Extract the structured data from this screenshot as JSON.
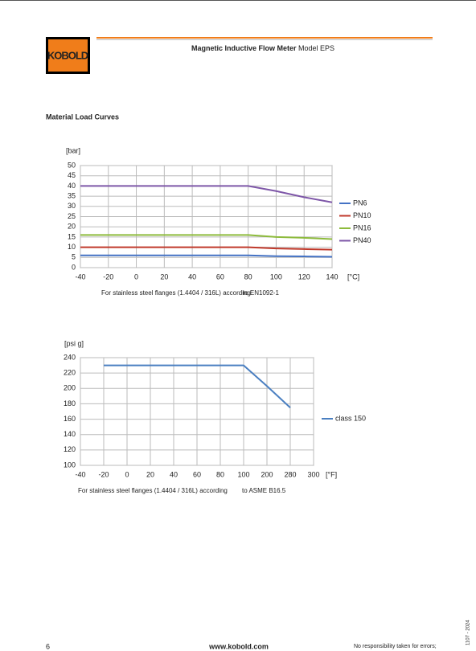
{
  "header": {
    "logo": "KOBOLD",
    "title_bold": "Magnetic Inductive Flow Meter",
    "title_rest": "Model EPS"
  },
  "section_title": "Material Load Curves",
  "chart_data": [
    {
      "type": "line",
      "y_label": "[bar]",
      "x_label": "[°C]",
      "caption": [
        "For stainless steel flanges (1.4404 / 316L) according",
        "to EN1092-1"
      ],
      "x": [
        -40,
        -20,
        0,
        20,
        40,
        60,
        80,
        100,
        120,
        140
      ],
      "xlim": [
        -40,
        140
      ],
      "xticks": [
        -40,
        -20,
        0,
        20,
        40,
        60,
        80,
        100,
        120,
        140
      ],
      "ylim": [
        0,
        50
      ],
      "yticks": [
        0,
        5,
        10,
        15,
        20,
        25,
        30,
        35,
        40,
        45,
        50
      ],
      "grid": true,
      "legend": "right",
      "series": [
        {
          "name": "PN6",
          "color": "#4472c4",
          "values": [
            6,
            6,
            6,
            6,
            6,
            6,
            6,
            5.6,
            5.5,
            5.3
          ]
        },
        {
          "name": "PN10",
          "color": "#c0392b",
          "values": [
            10,
            10,
            10,
            10,
            10,
            10,
            10,
            9.4,
            9.1,
            8.8
          ]
        },
        {
          "name": "PN16",
          "color": "#8dbb3c",
          "values": [
            16,
            16,
            16,
            16,
            16,
            16,
            16,
            15,
            14.6,
            14
          ]
        },
        {
          "name": "PN40",
          "color": "#7e57a8",
          "values": [
            40,
            40,
            40,
            40,
            40,
            40,
            40,
            37.5,
            34.5,
            32
          ]
        }
      ]
    },
    {
      "type": "line",
      "y_label": "[psi g]",
      "x_label": "[°F]",
      "caption": [
        "For stainless steel flanges (1.4404 / 316L) according",
        "to ASME B16.5"
      ],
      "categories": [
        "-40",
        "-20",
        "0",
        "20",
        "40",
        "60",
        "80",
        "100",
        "200",
        "280",
        "300"
      ],
      "ylim": [
        100,
        240
      ],
      "yticks": [
        100,
        120,
        140,
        160,
        180,
        200,
        220,
        240
      ],
      "grid": true,
      "legend": "right",
      "series": [
        {
          "name": "class 150",
          "color": "#4a7fc1",
          "values": [
            null,
            230,
            230,
            230,
            230,
            230,
            230,
            230,
            203,
            175,
            null
          ]
        }
      ]
    }
  ],
  "footer": {
    "page": "6",
    "website": "www.kobold.com",
    "disclaimer": "No responsibility taken for errors;",
    "code": "1107 - 2024"
  }
}
